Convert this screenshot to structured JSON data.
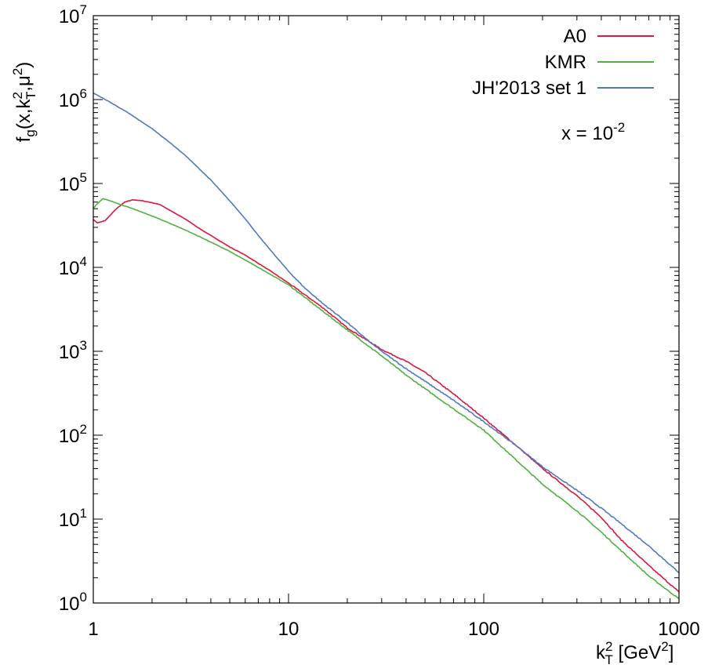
{
  "chart_data": {
    "type": "line",
    "title": "",
    "ylabel": {
      "base": "f",
      "sub_g": "g",
      "args_open": "(x,k",
      "k_sup": "2",
      "k_sub": "T",
      "args_mid": ",μ",
      "mu_sup": "2",
      "args_close": ")"
    },
    "xlabel": {
      "base": "k",
      "k_sup": "2",
      "k_sub": "T",
      "unit_open": " [GeV",
      "unit_sup": "2",
      "unit_close": "]"
    },
    "x_scale": "log",
    "y_scale": "log",
    "xlim": [
      1,
      1000
    ],
    "ylim": [
      1,
      10000000
    ],
    "x_ticks": [
      {
        "value": 1,
        "label": "1"
      },
      {
        "value": 10,
        "label": "10"
      },
      {
        "value": 100,
        "label": "100"
      },
      {
        "value": 1000,
        "label": "1000"
      }
    ],
    "y_ticks": [
      {
        "value": 1,
        "base": "10",
        "exp": "0"
      },
      {
        "value": 10,
        "base": "10",
        "exp": "1"
      },
      {
        "value": 100,
        "base": "10",
        "exp": "2"
      },
      {
        "value": 1000,
        "base": "10",
        "exp": "3"
      },
      {
        "value": 10000,
        "base": "10",
        "exp": "4"
      },
      {
        "value": 100000,
        "base": "10",
        "exp": "5"
      },
      {
        "value": 1000000,
        "base": "10",
        "exp": "6"
      },
      {
        "value": 10000000,
        "base": "10",
        "exp": "7"
      }
    ],
    "annotation": {
      "text": "x = 10",
      "exp": "-2"
    },
    "legend_position": "top-right",
    "series": [
      {
        "name": "A0",
        "color": "#e0143c",
        "x": [
          1.0,
          1.05,
          1.15,
          1.3,
          1.45,
          1.6,
          1.8,
          2.0,
          2.2,
          2.5,
          3.0,
          3.5,
          4.0,
          5.0,
          6.0,
          8.0,
          10.0,
          15.0,
          20.0,
          30.0,
          40.0,
          50.0,
          70.0,
          100.0,
          150.0,
          200.0,
          300.0,
          400.0,
          500.0,
          700.0,
          1000.0
        ],
        "y": [
          37000,
          34000,
          36000,
          49000,
          60000,
          64000,
          62000,
          59000,
          56000,
          47000,
          37000,
          29000,
          24000,
          17500,
          14000,
          9200,
          6500,
          3300,
          1900,
          1050,
          760,
          560,
          310,
          160,
          72,
          40,
          19,
          10.5,
          5.8,
          2.8,
          1.35
        ]
      },
      {
        "name": "KMR",
        "color": "#4db33d",
        "x": [
          1.0,
          1.03,
          1.08,
          1.12,
          1.2,
          1.35,
          1.6,
          2.0,
          2.5,
          3.0,
          4.0,
          5.0,
          7.0,
          10.0,
          15.0,
          20.0,
          30.0,
          40.0,
          60.0,
          100.0,
          150.0,
          200.0,
          300.0,
          400.0,
          500.0,
          700.0,
          1000.0
        ],
        "y": [
          50000,
          55000,
          61000,
          66000,
          63000,
          57000,
          50000,
          41000,
          33000,
          27500,
          20000,
          15500,
          10000,
          6200,
          3000,
          1800,
          880,
          520,
          265,
          115,
          48,
          26,
          12.5,
          7.0,
          4.3,
          2.1,
          1.12
        ]
      },
      {
        "name": "JH'2013 set 1",
        "color": "#4f79c4",
        "x": [
          1.0,
          1.2,
          1.5,
          2.0,
          2.5,
          3.0,
          4.0,
          5.0,
          6.0,
          7.0,
          8.0,
          10.0,
          12.0,
          15.0,
          20.0,
          25.0,
          30.0,
          40.0,
          50.0,
          70.0,
          100.0,
          150.0,
          200.0,
          300.0,
          400.0,
          500.0,
          700.0,
          1000.0
        ],
        "y": [
          1200000,
          950000,
          700000,
          450000,
          300000,
          210000,
          110000,
          62000,
          38000,
          24000,
          16500,
          9000,
          5800,
          3700,
          2200,
          1400,
          1000,
          620,
          440,
          260,
          145,
          72,
          42,
          22,
          13.5,
          9.0,
          4.8,
          2.3
        ]
      }
    ]
  }
}
